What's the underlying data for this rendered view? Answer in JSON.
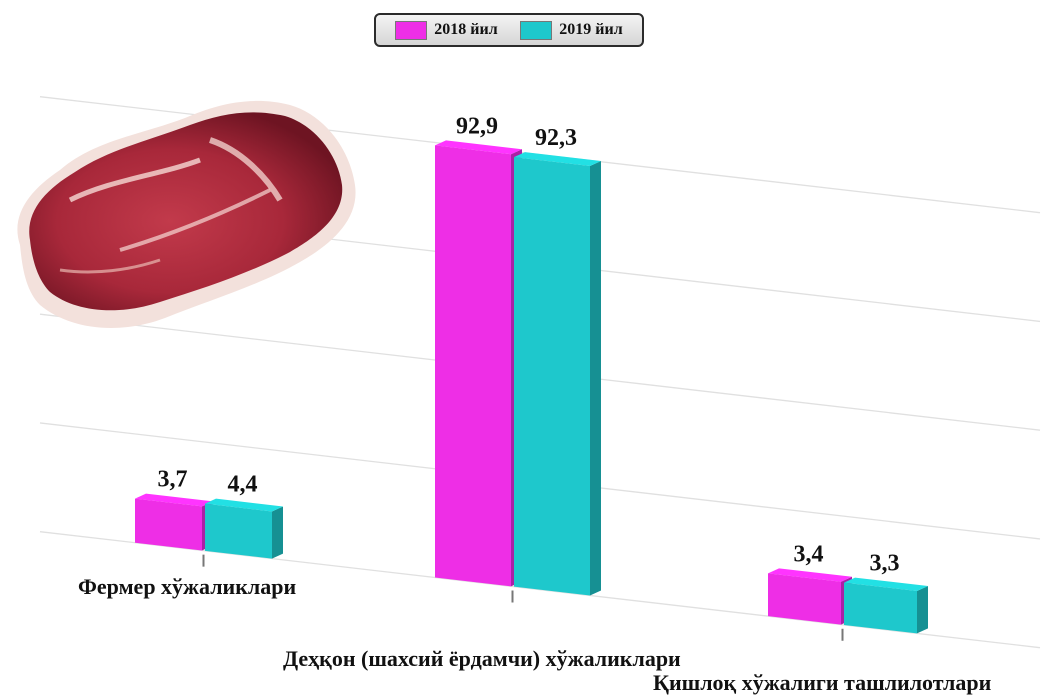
{
  "colors": {
    "series_2018": "#ee2ee6",
    "series_2019": "#1ec8cc",
    "gridline": "#e0e0e0",
    "meat": "#a8283a"
  },
  "legend": {
    "items": [
      {
        "label": "2018 йил",
        "color": "#ee2ee6"
      },
      {
        "label": "2019 йил",
        "color": "#1ec8cc"
      }
    ]
  },
  "picture": {
    "icon": "raw-meat-steak-icon"
  },
  "chart_data": {
    "type": "bar",
    "style": "3d-perspective",
    "categories": [
      "Фермер хўжаликлари",
      "Деҳқон (шахсий ёрдамчи) хўжаликлари",
      "Қишлоқ хўжалиги ташлилотлари"
    ],
    "series": [
      {
        "name": "2018 йил",
        "values": [
          3.7,
          92.9,
          3.4
        ],
        "labels": [
          "3,7",
          "92,9",
          "3,4"
        ]
      },
      {
        "name": "2019 йил",
        "values": [
          4.4,
          92.3,
          3.3
        ],
        "labels": [
          "4,4",
          "92,3",
          "3,3"
        ]
      }
    ],
    "ylim": [
      0,
      100
    ],
    "grid": true,
    "legend_position": "top"
  }
}
